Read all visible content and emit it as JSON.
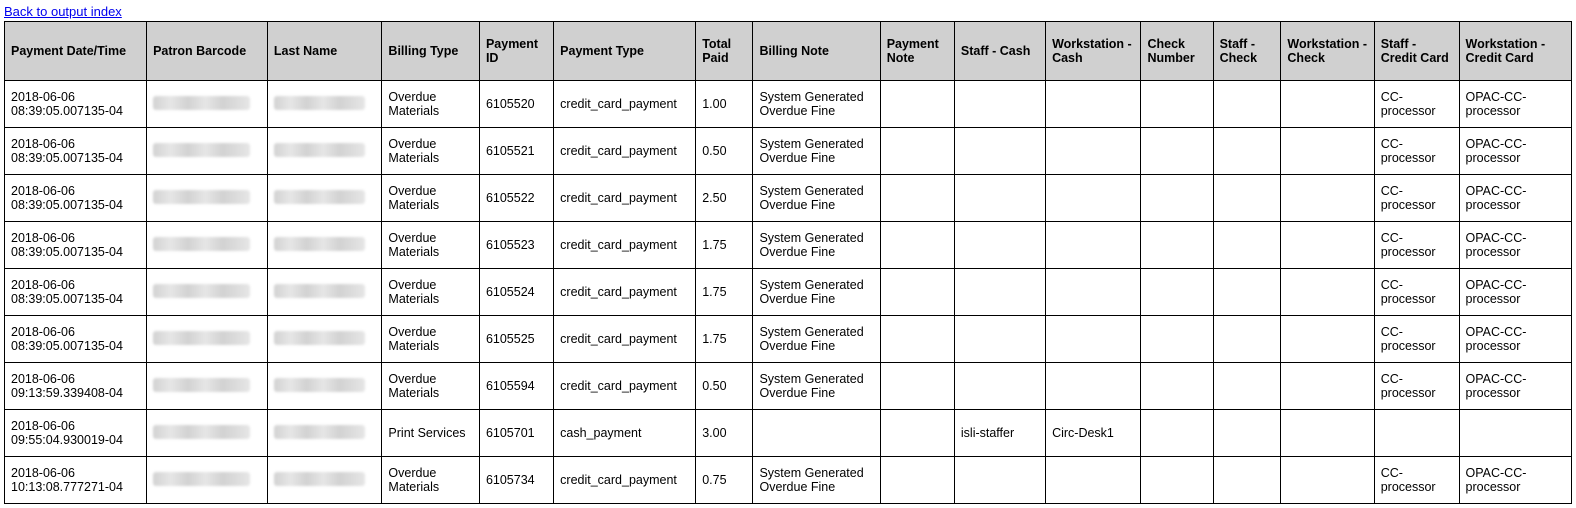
{
  "back_link_text": "Back to output index",
  "table": {
    "header_bg": "#d0d0d0",
    "border_color": "#000000",
    "columns": [
      "Payment Date/Time",
      "Patron Barcode",
      "Last Name",
      "Billing Type",
      "Payment ID",
      "Payment Type",
      "Total Paid",
      "Billing Note",
      "Payment Note",
      "Staff - Cash",
      "Workstation - Cash",
      "Check Number",
      "Staff - Check",
      "Workstation - Check",
      "Staff - Credit Card",
      "Workstation - Credit Card"
    ],
    "rows": [
      {
        "datetime": "2018-06-06 08:39:05.007135-04",
        "patron_barcode_redacted": true,
        "last_name_redacted": true,
        "billing_type": "Overdue Materials",
        "payment_id": "6105520",
        "payment_type": "credit_card_payment",
        "total_paid": "1.00",
        "billing_note": "System Generated Overdue Fine",
        "payment_note": "",
        "staff_cash": "",
        "workstation_cash": "",
        "check_number": "",
        "staff_check": "",
        "workstation_check": "",
        "staff_cc": "CC-processor",
        "workstation_cc": "OPAC-CC-processor"
      },
      {
        "datetime": "2018-06-06 08:39:05.007135-04",
        "patron_barcode_redacted": true,
        "last_name_redacted": true,
        "billing_type": "Overdue Materials",
        "payment_id": "6105521",
        "payment_type": "credit_card_payment",
        "total_paid": "0.50",
        "billing_note": "System Generated Overdue Fine",
        "payment_note": "",
        "staff_cash": "",
        "workstation_cash": "",
        "check_number": "",
        "staff_check": "",
        "workstation_check": "",
        "staff_cc": "CC-processor",
        "workstation_cc": "OPAC-CC-processor"
      },
      {
        "datetime": "2018-06-06 08:39:05.007135-04",
        "patron_barcode_redacted": true,
        "last_name_redacted": true,
        "billing_type": "Overdue Materials",
        "payment_id": "6105522",
        "payment_type": "credit_card_payment",
        "total_paid": "2.50",
        "billing_note": "System Generated Overdue Fine",
        "payment_note": "",
        "staff_cash": "",
        "workstation_cash": "",
        "check_number": "",
        "staff_check": "",
        "workstation_check": "",
        "staff_cc": "CC-processor",
        "workstation_cc": "OPAC-CC-processor"
      },
      {
        "datetime": "2018-06-06 08:39:05.007135-04",
        "patron_barcode_redacted": true,
        "last_name_redacted": true,
        "billing_type": "Overdue Materials",
        "payment_id": "6105523",
        "payment_type": "credit_card_payment",
        "total_paid": "1.75",
        "billing_note": "System Generated Overdue Fine",
        "payment_note": "",
        "staff_cash": "",
        "workstation_cash": "",
        "check_number": "",
        "staff_check": "",
        "workstation_check": "",
        "staff_cc": "CC-processor",
        "workstation_cc": "OPAC-CC-processor"
      },
      {
        "datetime": "2018-06-06 08:39:05.007135-04",
        "patron_barcode_redacted": true,
        "last_name_redacted": true,
        "billing_type": "Overdue Materials",
        "payment_id": "6105524",
        "payment_type": "credit_card_payment",
        "total_paid": "1.75",
        "billing_note": "System Generated Overdue Fine",
        "payment_note": "",
        "staff_cash": "",
        "workstation_cash": "",
        "check_number": "",
        "staff_check": "",
        "workstation_check": "",
        "staff_cc": "CC-processor",
        "workstation_cc": "OPAC-CC-processor"
      },
      {
        "datetime": "2018-06-06 08:39:05.007135-04",
        "patron_barcode_redacted": true,
        "last_name_redacted": true,
        "billing_type": "Overdue Materials",
        "payment_id": "6105525",
        "payment_type": "credit_card_payment",
        "total_paid": "1.75",
        "billing_note": "System Generated Overdue Fine",
        "payment_note": "",
        "staff_cash": "",
        "workstation_cash": "",
        "check_number": "",
        "staff_check": "",
        "workstation_check": "",
        "staff_cc": "CC-processor",
        "workstation_cc": "OPAC-CC-processor"
      },
      {
        "datetime": "2018-06-06 09:13:59.339408-04",
        "patron_barcode_redacted": true,
        "last_name_redacted": true,
        "billing_type": "Overdue Materials",
        "payment_id": "6105594",
        "payment_type": "credit_card_payment",
        "total_paid": "0.50",
        "billing_note": "System Generated Overdue Fine",
        "payment_note": "",
        "staff_cash": "",
        "workstation_cash": "",
        "check_number": "",
        "staff_check": "",
        "workstation_check": "",
        "staff_cc": "CC-processor",
        "workstation_cc": "OPAC-CC-processor"
      },
      {
        "datetime": "2018-06-06 09:55:04.930019-04",
        "patron_barcode_redacted": true,
        "last_name_redacted": true,
        "billing_type": "Print Services",
        "payment_id": "6105701",
        "payment_type": "cash_payment",
        "total_paid": "3.00",
        "billing_note": "",
        "payment_note": "",
        "staff_cash": "isli-staffer",
        "workstation_cash": "Circ-Desk1",
        "check_number": "",
        "staff_check": "",
        "workstation_check": "",
        "staff_cc": "",
        "workstation_cc": ""
      },
      {
        "datetime": "2018-06-06 10:13:08.777271-04",
        "patron_barcode_redacted": true,
        "last_name_redacted": true,
        "billing_type": "Overdue Materials",
        "payment_id": "6105734",
        "payment_type": "credit_card_payment",
        "total_paid": "0.75",
        "billing_note": "System Generated Overdue Fine",
        "payment_note": "",
        "staff_cash": "",
        "workstation_cash": "",
        "check_number": "",
        "staff_check": "",
        "workstation_check": "",
        "staff_cc": "CC-processor",
        "workstation_cc": "OPAC-CC-processor"
      }
    ]
  }
}
